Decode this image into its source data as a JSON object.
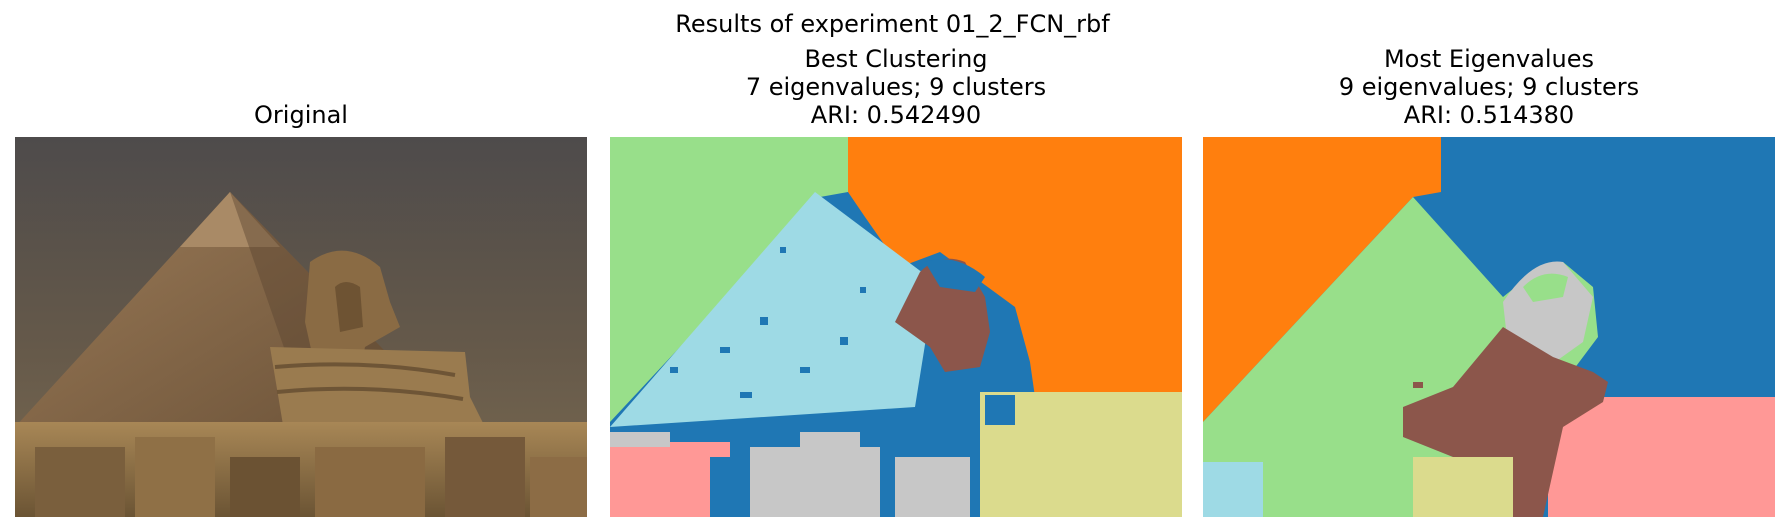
{
  "suptitle": "Results of experiment 01_2_FCN_rbf",
  "panels": [
    {
      "title": "Original"
    },
    {
      "title_line1": "Best Clustering",
      "title_line2": "7 eigenvalues; 9 clusters",
      "title_line3": "ARI: 0.542490"
    },
    {
      "title_line1": "Most Eigenvalues",
      "title_line2": "9 eigenvalues; 9 clusters",
      "title_line3": "ARI: 0.514380"
    }
  ],
  "palette": {
    "orange": "#ff7f0e",
    "blue": "#1f77b4",
    "light_green": "#98df8a",
    "light_blue": "#9edae5",
    "brown": "#8c564b",
    "khaki": "#dbdb8d",
    "pink": "#ff9896",
    "gray": "#c7c7c7"
  }
}
